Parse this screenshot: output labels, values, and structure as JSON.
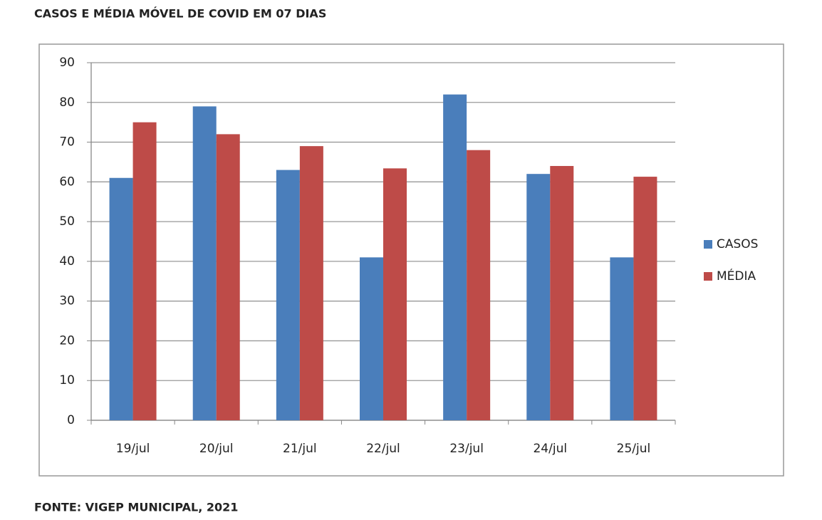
{
  "chart_data": {
    "type": "bar",
    "title": "CASOS E MÉDIA MÓVEL DE COVID EM 07 DIAS",
    "source": "FONTE: VIGEP MUNICIPAL, 2021",
    "categories": [
      "19/jul",
      "20/jul",
      "21/jul",
      "22/jul",
      "23/jul",
      "24/jul",
      "25/jul"
    ],
    "series": [
      {
        "name": "CASOS",
        "color": "#4a7ebb",
        "values": [
          61,
          79,
          63,
          41,
          82,
          62,
          41
        ]
      },
      {
        "name": "MÉDIA",
        "color": "#be4b48",
        "values": [
          75,
          72,
          69,
          63.4,
          68,
          64,
          61.3
        ]
      }
    ],
    "ylim": [
      0,
      90
    ],
    "yticks": [
      0,
      10,
      20,
      30,
      40,
      50,
      60,
      70,
      80,
      90
    ],
    "grid": true,
    "legend": "right"
  }
}
